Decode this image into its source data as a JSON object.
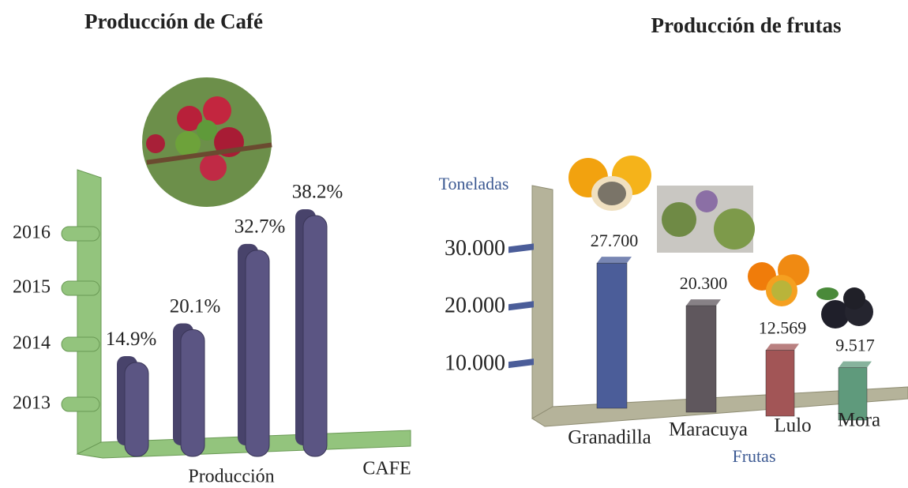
{
  "chart_data": [
    {
      "type": "bar",
      "title": "Producción de Café",
      "categories": [
        "2013",
        "2014",
        "2015",
        "2016"
      ],
      "values": [
        14.9,
        20.1,
        32.7,
        38.2
      ],
      "value_labels": [
        "14.9%",
        "20.1%",
        "32.7%",
        "38.2%"
      ],
      "color": "#5b5583",
      "xlabel": "Producción",
      "annotation": "CAFE"
    },
    {
      "type": "bar",
      "title": "Producción de frutas",
      "categories": [
        "Granadilla",
        "Maracuya",
        "Lulo",
        "Mora"
      ],
      "values": [
        27700,
        20300,
        12569,
        9517
      ],
      "value_labels": [
        "27.700",
        "20.300",
        "12.569",
        "9.517"
      ],
      "colors": [
        "#4b5d99",
        "#5f575d",
        "#a25556",
        "#5f9a7c"
      ],
      "ylim": [
        0,
        35000
      ],
      "yticks": [
        {
          "value": 10000,
          "label": "10.000"
        },
        {
          "value": 20000,
          "label": "20.000"
        },
        {
          "value": 30000,
          "label": "30.000"
        }
      ],
      "ylabel": "Toneladas",
      "xlabel": "Frutas"
    }
  ]
}
